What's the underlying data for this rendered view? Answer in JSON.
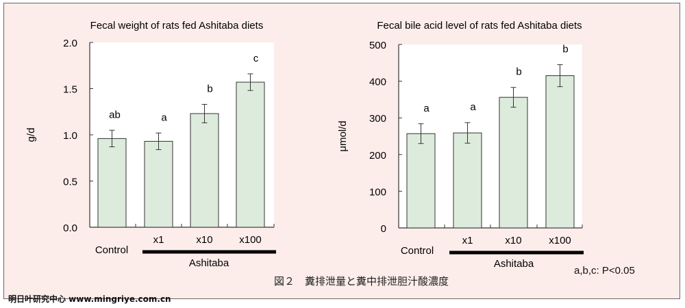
{
  "figure_caption": "図２　糞排泄量と糞中排泄胆汁酸濃度",
  "significance_note": "a,b,c: P<0.05",
  "footer": "明日叶研究中心 www.mingriye.com.cn",
  "colors": {
    "background": "#fcedea",
    "bar_fill": "#dcebdc",
    "plot_bg": "#ffffff"
  },
  "chart_data": [
    {
      "type": "bar",
      "title": "Fecal weight of rats fed Ashitaba diets",
      "xlabel": "",
      "ylabel": "g/d",
      "ylim": [
        0,
        2.0
      ],
      "yticks": [
        "0.0",
        "0.5",
        "1.0",
        "1.5",
        "2.0"
      ],
      "categories": [
        "Control",
        "x1",
        "x10",
        "x100"
      ],
      "group_label": "Ashitaba",
      "values": [
        0.96,
        0.93,
        1.23,
        1.57
      ],
      "errors": [
        0.09,
        0.09,
        0.1,
        0.09
      ],
      "significance_letters": [
        "ab",
        "a",
        "b",
        "c"
      ],
      "grid": false
    },
    {
      "type": "bar",
      "title": "Fecal bile acid level of rats fed Ashitaba diets",
      "xlabel": "",
      "ylabel": "μmol/d",
      "ylim": [
        0,
        500
      ],
      "yticks": [
        "0",
        "100",
        "200",
        "300",
        "400",
        "500"
      ],
      "categories": [
        "Control",
        "x1",
        "x10",
        "x100"
      ],
      "group_label": "Ashitaba",
      "values": [
        257,
        259,
        356,
        415
      ],
      "errors": [
        27,
        28,
        27,
        30
      ],
      "significance_letters": [
        "a",
        "a",
        "b",
        "b"
      ],
      "grid": false
    }
  ]
}
